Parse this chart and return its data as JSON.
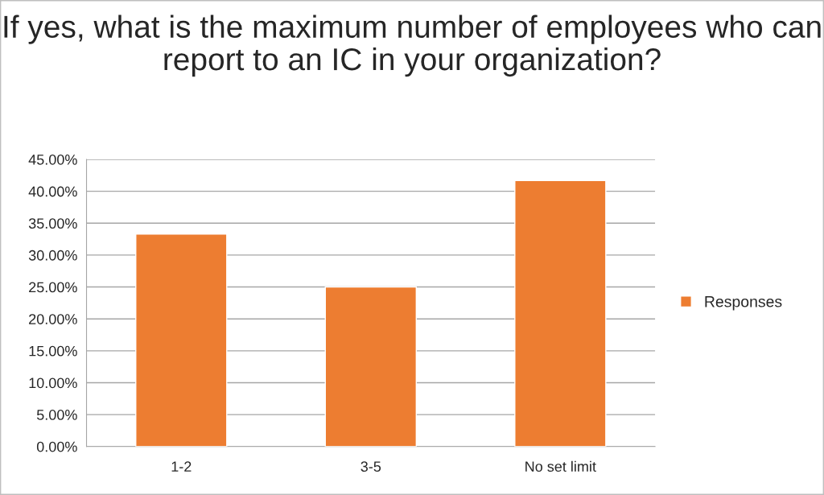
{
  "chart_data": {
    "type": "bar",
    "title": "If yes, what is the maximum number of employees who can report to an IC in your organization?",
    "categories": [
      "1-2",
      "3-5",
      "No set limit"
    ],
    "series": [
      {
        "name": "Responses",
        "color": "#ed7d31",
        "values": [
          33.3,
          25,
          41.7
        ]
      }
    ],
    "ylim": [
      0,
      45
    ],
    "yticks": [
      {
        "value": 0,
        "label": "0.00%"
      },
      {
        "value": 5,
        "label": "5.00%"
      },
      {
        "value": 10,
        "label": "10.00%"
      },
      {
        "value": 15,
        "label": "15.00%"
      },
      {
        "value": 20,
        "label": "20.00%"
      },
      {
        "value": 25,
        "label": "25.00%"
      },
      {
        "value": 30,
        "label": "30.00%"
      },
      {
        "value": 35,
        "label": "35.00%"
      },
      {
        "value": 40,
        "label": "40.00%"
      },
      {
        "value": 45,
        "label": "45.00%"
      }
    ],
    "grid": "y",
    "legend": "right"
  }
}
